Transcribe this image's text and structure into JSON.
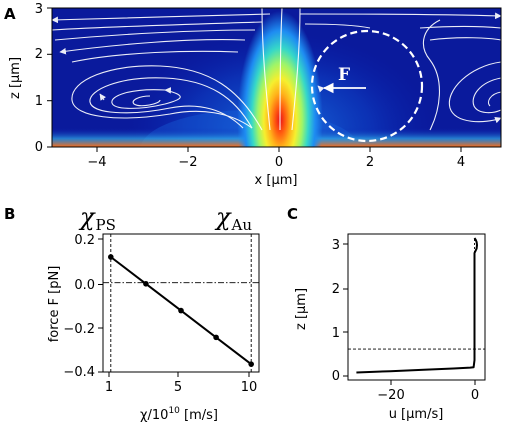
{
  "panels": {
    "a": {
      "letter": "A",
      "xlabel": "x [µm]",
      "ylabel": "z [µm]",
      "xticks": [
        "−4",
        "−2",
        "0",
        "2",
        "4"
      ],
      "yticks": [
        "0",
        "1",
        "2",
        "3"
      ],
      "force_label": "F"
    },
    "b": {
      "letter": "B",
      "xlabel_main": "χ/10",
      "xlabel_exp": "10",
      "xlabel_unit": " [m/s]",
      "ylabel": "force F [pN]",
      "xticks": [
        "1",
        "5",
        "10"
      ],
      "yticks": [
        "0.2",
        "0.0",
        "−0.2",
        "−0.4"
      ],
      "left_marker": {
        "chi": "χ",
        "sub": "PS"
      },
      "right_marker": {
        "chi": "χ",
        "sub": "Au"
      }
    },
    "c": {
      "letter": "C",
      "xlabel": "u [µm/s]",
      "ylabel": "z [µm]",
      "xticks": [
        "−20",
        "0"
      ],
      "yticks": [
        "0",
        "1",
        "2",
        "3"
      ]
    }
  },
  "chart_data": [
    {
      "type": "heatmap",
      "panel": "A",
      "xlabel": "x [µm]",
      "ylabel": "z [µm]",
      "xlim": [
        -5,
        5
      ],
      "ylim": [
        0,
        3
      ],
      "colormap": "jet",
      "hotspot": {
        "x": 0.0,
        "z": 0.6
      },
      "sphere": {
        "center_x": 2.0,
        "center_z": 1.5,
        "radius": 1.35,
        "style": "dashed"
      },
      "force_arrow": {
        "from_x": 1.35,
        "to_x": 0.85,
        "z": 1.3,
        "label": "F"
      },
      "streamline_vortices": [
        {
          "x": -3.0,
          "z": 1.0
        },
        {
          "x": 4.8,
          "z": 1.0
        }
      ]
    },
    {
      "type": "line",
      "panel": "B",
      "xlabel": "χ/10^10 [m/s]",
      "ylabel": "force F [pN]",
      "xlim": [
        0.5,
        10.5
      ],
      "ylim": [
        -0.4,
        0.2
      ],
      "x": [
        1,
        3.25,
        5.5,
        7.75,
        10
      ],
      "y": [
        0.115,
        -0.005,
        -0.125,
        -0.245,
        -0.365
      ],
      "hline": 0.0,
      "vlines": [
        1,
        10
      ]
    },
    {
      "type": "line",
      "panel": "C",
      "xlabel": "u [µm/s]",
      "ylabel": "z [µm]",
      "xlim": [
        -30,
        2.5
      ],
      "ylim": [
        -0.15,
        3.15
      ],
      "x": [
        -28,
        -20,
        -12,
        -5,
        -1,
        -0.2,
        0,
        0,
        0.2,
        0.5,
        0.6,
        0.5,
        0.3,
        0
      ],
      "y": [
        0.02,
        0.05,
        0.08,
        0.11,
        0.13,
        0.14,
        0.3,
        2.72,
        2.76,
        2.82,
        2.9,
        2.97,
        3.02,
        3.06
      ],
      "hline": 0.55,
      "vline": 0
    }
  ]
}
